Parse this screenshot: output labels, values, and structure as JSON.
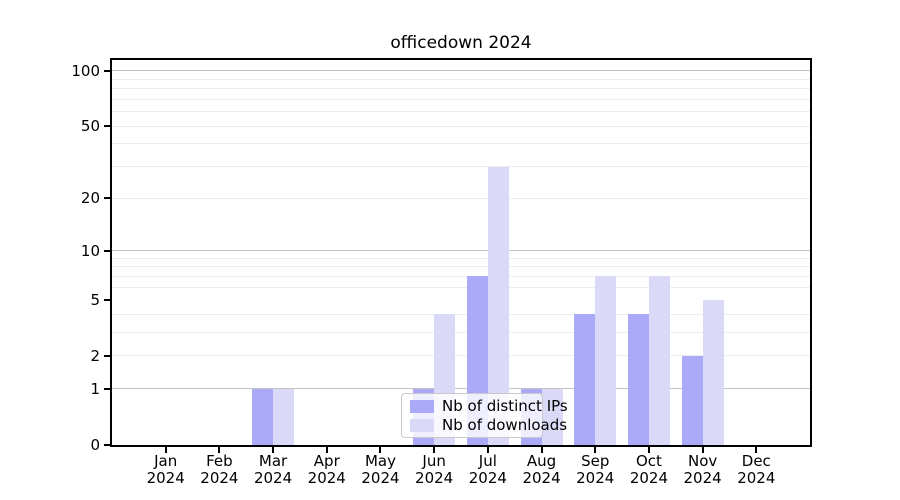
{
  "title": "officedown 2024",
  "chart_data": {
    "type": "bar",
    "title": "officedown 2024",
    "categories": [
      "Jan 2024",
      "Feb 2024",
      "Mar 2024",
      "Apr 2024",
      "May 2024",
      "Jun 2024",
      "Jul 2024",
      "Aug 2024",
      "Sep 2024",
      "Oct 2024",
      "Nov 2024",
      "Dec 2024"
    ],
    "series": [
      {
        "name": "Nb of distinct IPs",
        "color": "#aaaaf8",
        "values": [
          0,
          0,
          1,
          0,
          0,
          1,
          7,
          1,
          4,
          4,
          2,
          0
        ]
      },
      {
        "name": "Nb of downloads",
        "color": "#dadaf8",
        "values": [
          0,
          0,
          1,
          0,
          0,
          4,
          30,
          1,
          7,
          7,
          5,
          0
        ]
      }
    ],
    "xlabel": "",
    "ylabel": "",
    "y_axis": {
      "scale": "log1p",
      "ticks": [
        0,
        1,
        2,
        5,
        10,
        20,
        50,
        100
      ],
      "major_gridlines": [
        1,
        10,
        100
      ],
      "minor_gridlines": [
        2,
        3,
        4,
        6,
        7,
        8,
        9,
        20,
        30,
        40,
        50,
        60,
        70,
        80,
        90
      ],
      "ylim": [
        0,
        114
      ],
      "grid": "on"
    },
    "legend": {
      "position": "inside-bottom-center",
      "entries": [
        "Nb of distinct IPs",
        "Nb of downloads"
      ]
    }
  }
}
